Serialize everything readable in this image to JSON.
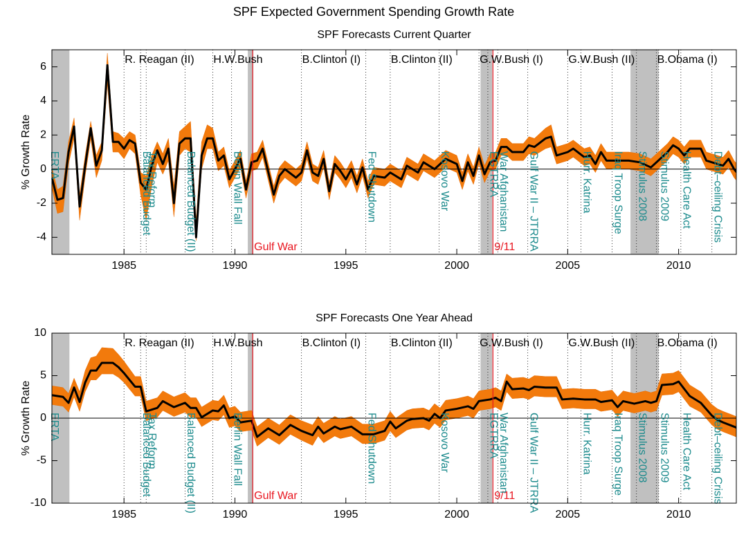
{
  "title": "SPF Expected Government Spending Growth Rate",
  "chart_data": [
    {
      "type": "line",
      "title": "SPF Forecasts Current Quarter",
      "ylabel": "% Growth Rate",
      "xlim": [
        1981.75,
        2012.6
      ],
      "ylim": [
        -5,
        7
      ],
      "xticks": [
        1985,
        1990,
        1995,
        2000,
        2005,
        2010
      ],
      "yticks": [
        -4,
        -2,
        0,
        2,
        4,
        6
      ],
      "x": [
        1981.75,
        1982,
        1982.25,
        1982.5,
        1982.75,
        1983,
        1983.25,
        1983.5,
        1983.75,
        1984,
        1984.25,
        1984.5,
        1984.75,
        1985,
        1985.25,
        1985.5,
        1985.75,
        1986,
        1986.25,
        1986.5,
        1986.75,
        1987,
        1987.25,
        1987.5,
        1987.75,
        1988,
        1988.25,
        1988.5,
        1988.75,
        1989,
        1989.25,
        1989.5,
        1989.75,
        1990,
        1990.25,
        1990.5,
        1990.75,
        1991,
        1991.25,
        1991.75,
        1992,
        1992.25,
        1992.75,
        1993,
        1993.25,
        1993.5,
        1993.75,
        1994,
        1994.25,
        1994.5,
        1994.75,
        1995,
        1995.25,
        1995.5,
        1995.75,
        1996,
        1996.25,
        1996.75,
        1997,
        1997.5,
        1997.75,
        1998.25,
        1998.5,
        1999,
        1999.5,
        2000,
        2000.25,
        2000.5,
        2000.75,
        2001,
        2001.25,
        2001.5,
        2001.75,
        2002,
        2002.25,
        2002.5,
        2003,
        2003.25,
        2003.5,
        2004,
        2004.25,
        2004.5,
        2005,
        2005.25,
        2005.75,
        2006,
        2006.25,
        2006.5,
        2006.75,
        2007.25,
        2007.75,
        2008.25,
        2008.75,
        2009,
        2009.5,
        2009.75,
        2010,
        2010.25,
        2010.5,
        2011,
        2011.25,
        2011.75,
        2012,
        2012.25,
        2012.5,
        2012.75
      ],
      "series": [
        {
          "color": "#000000",
          "values": [
            -0.5,
            -1.8,
            -1.7,
            1.0,
            2.5,
            -2.2,
            0.2,
            2.4,
            0.2,
            1.1,
            6.1,
            1.6,
            1.6,
            1.2,
            1.7,
            1.5,
            -0.8,
            -1.2,
            0.2,
            1.1,
            0.3,
            1.2,
            -2.0,
            1.5,
            1.8,
            1.8,
            -4.0,
            0.8,
            1.8,
            1.8,
            0.5,
            0.8,
            -0.6,
            0.0,
            0.6,
            -1.2,
            0.4,
            0.5,
            1.2,
            -1.5,
            -0.4,
            0.0,
            -0.5,
            -0.2,
            1.1,
            -0.2,
            -0.4,
            0.6,
            -1.3,
            0.3,
            -0.1,
            -0.6,
            0.0,
            -0.9,
            0.1,
            -1.2,
            -0.4,
            -0.5,
            -0.2,
            -0.6,
            0.2,
            -0.2,
            0.4,
            0.0,
            0.6,
            0.3,
            -0.7,
            0.4,
            -0.4,
            0.8,
            -0.3,
            0.4,
            0.5,
            1.3,
            1.3,
            1.0,
            1.0,
            1.4,
            1.3,
            1.8,
            1.9,
            0.8,
            1.0,
            1.2,
            0.7,
            0.8,
            0.3,
            1.0,
            0.5,
            0.5,
            0.5,
            0.4,
            0.1,
            0.4,
            1.0,
            1.4,
            1.2,
            0.8,
            1.2,
            1.2,
            0.5,
            0.3,
            0.2,
            0.6,
            0.0,
            -0.4
          ]
        }
      ],
      "band": {
        "color": "#f27a0c",
        "lower": [
          -1.1,
          -2.6,
          -2.5,
          0.3,
          1.8,
          -3.0,
          -0.4,
          1.8,
          -0.5,
          0.5,
          5.0,
          1.0,
          1.0,
          0.6,
          1.2,
          0.9,
          -1.5,
          -3.0,
          -1.0,
          0.4,
          -0.3,
          0.5,
          -2.8,
          0.8,
          1.2,
          1.0,
          -4.2,
          0.0,
          1.2,
          1.2,
          -0.1,
          0.2,
          -1.1,
          -0.5,
          0.1,
          -1.7,
          -0.1,
          0.0,
          0.7,
          -2.0,
          -0.9,
          -0.5,
          -1.0,
          -0.7,
          0.6,
          -0.7,
          -0.9,
          0.1,
          -1.8,
          -0.2,
          -0.6,
          -1.1,
          -0.5,
          -1.4,
          -0.4,
          -1.7,
          -0.9,
          -1.0,
          -0.7,
          -1.1,
          -0.3,
          -0.7,
          -0.1,
          -0.5,
          0.1,
          -0.2,
          -1.2,
          -0.1,
          -0.9,
          0.3,
          -0.8,
          -0.1,
          0.0,
          0.8,
          0.8,
          0.5,
          0.5,
          0.9,
          0.8,
          1.2,
          1.3,
          0.3,
          0.5,
          0.7,
          0.2,
          0.3,
          -0.2,
          0.5,
          0.0,
          0.0,
          0.0,
          -0.1,
          -0.4,
          -0.1,
          0.5,
          0.9,
          0.7,
          0.3,
          0.7,
          0.7,
          0.0,
          -0.2,
          -0.3,
          0.1,
          -0.5,
          -0.9
        ],
        "upper": [
          0.1,
          -1.2,
          -1.0,
          1.6,
          3.0,
          -1.5,
          0.8,
          2.8,
          0.8,
          1.6,
          6.8,
          2.2,
          2.1,
          1.8,
          2.2,
          2.0,
          -0.2,
          -0.4,
          0.8,
          1.6,
          0.9,
          1.8,
          -1.0,
          2.2,
          2.5,
          2.8,
          -3.0,
          1.6,
          2.6,
          2.4,
          1.0,
          1.3,
          -0.1,
          0.5,
          1.1,
          -0.7,
          0.9,
          1.0,
          1.7,
          -1.0,
          0.1,
          0.5,
          0.0,
          0.3,
          1.6,
          0.3,
          0.1,
          1.1,
          -0.8,
          0.8,
          0.4,
          -0.1,
          0.5,
          -0.4,
          0.6,
          -0.7,
          0.1,
          0.0,
          0.3,
          -0.1,
          0.7,
          0.3,
          0.9,
          0.5,
          1.1,
          0.8,
          -0.2,
          0.9,
          0.1,
          1.3,
          0.2,
          0.9,
          1.0,
          1.8,
          1.8,
          1.5,
          1.5,
          1.9,
          1.8,
          2.4,
          2.6,
          1.3,
          1.5,
          1.7,
          1.2,
          1.3,
          0.8,
          1.5,
          1.0,
          1.0,
          1.0,
          0.9,
          0.6,
          0.9,
          1.5,
          1.9,
          1.7,
          1.3,
          1.7,
          1.7,
          1.0,
          0.8,
          0.7,
          1.1,
          0.5,
          0.1
        ]
      }
    },
    {
      "type": "line",
      "title": "SPF Forecasts One Year Ahead",
      "ylabel": "% Growth Rate",
      "xlim": [
        1981.75,
        2012.6
      ],
      "ylim": [
        -10,
        10
      ],
      "xticks": [
        1985,
        1990,
        1995,
        2000,
        2005,
        2010
      ],
      "yticks": [
        -10,
        -5,
        0,
        5,
        10
      ],
      "x": [
        1981.75,
        1982.25,
        1982.5,
        1982.75,
        1983,
        1983.25,
        1983.5,
        1983.75,
        1984,
        1984.5,
        1984.75,
        1985,
        1985.5,
        1985.75,
        1986,
        1986.5,
        1986.75,
        1987.25,
        1987.75,
        1988,
        1988.25,
        1988.5,
        1989,
        1989.25,
        1989.5,
        1989.75,
        1990,
        1990.25,
        1990.75,
        1991,
        1991.5,
        1992,
        1992.5,
        1993,
        1993.5,
        1993.75,
        1994,
        1994.5,
        1994.75,
        1995.25,
        1995.75,
        1996.25,
        1996.75,
        1997,
        1997.25,
        1997.75,
        1998,
        1998.5,
        1998.75,
        1999,
        1999.25,
        1999.5,
        2000,
        2000.5,
        2000.75,
        2001,
        2001.5,
        2001.75,
        2002,
        2002.25,
        2002.5,
        2003,
        2003.25,
        2003.5,
        2004,
        2004.5,
        2004.75,
        2005.25,
        2005.75,
        2006.25,
        2006.5,
        2007,
        2007.25,
        2007.5,
        2008,
        2008.5,
        2008.75,
        2009,
        2009.25,
        2009.75,
        2010,
        2010.5,
        2011,
        2011.5,
        2011.75,
        2012,
        2012.5,
        2012.75
      ],
      "series": [
        {
          "color": "#000000",
          "values": [
            2.7,
            2.5,
            1.8,
            3.6,
            1.9,
            4.2,
            5.6,
            5.6,
            6.5,
            6.5,
            6.0,
            5.3,
            3.7,
            3.7,
            0.8,
            1.2,
            2.0,
            1.3,
            1.8,
            1.2,
            1.2,
            0.1,
            0.9,
            0.8,
            1.5,
            0.0,
            0.2,
            -0.5,
            -0.3,
            -2.2,
            -1.2,
            -2.0,
            -0.8,
            -1.5,
            -2.0,
            -1.0,
            -1.8,
            -1.0,
            -1.3,
            -1.0,
            -1.9,
            -1.9,
            -1.5,
            -0.4,
            -1.2,
            -0.3,
            -0.1,
            0.0,
            -0.3,
            0.5,
            0.0,
            0.9,
            1.1,
            1.4,
            1.1,
            2.0,
            2.2,
            2.4,
            2.0,
            4.3,
            3.4,
            3.5,
            3.3,
            3.7,
            3.6,
            3.6,
            2.2,
            2.3,
            2.2,
            2.2,
            1.9,
            2.1,
            1.3,
            2.0,
            1.7,
            2.0,
            1.8,
            2.0,
            3.9,
            4.0,
            4.3,
            2.6,
            1.8,
            0.3,
            -0.2,
            -0.5,
            -1.0,
            -1.3
          ]
        }
      ],
      "band": {
        "color": "#f27a0c",
        "lower": [
          1.6,
          1.4,
          0.7,
          2.5,
          0.8,
          3.1,
          4.5,
          4.5,
          5.2,
          5.2,
          4.8,
          4.2,
          2.6,
          2.6,
          -0.3,
          0.1,
          0.9,
          0.2,
          0.7,
          0.1,
          0.1,
          -1.0,
          -0.2,
          -0.3,
          0.4,
          -1.1,
          -0.9,
          -1.6,
          -1.4,
          -3.3,
          -2.3,
          -3.1,
          -1.9,
          -2.6,
          -3.2,
          -2.1,
          -2.9,
          -2.1,
          -2.4,
          -2.1,
          -3.0,
          -3.0,
          -2.6,
          -1.5,
          -2.3,
          -1.4,
          -1.2,
          -1.1,
          -1.4,
          -0.6,
          -1.1,
          -0.2,
          0.0,
          0.3,
          0.0,
          0.9,
          1.1,
          1.3,
          0.9,
          3.1,
          2.3,
          2.4,
          2.2,
          2.6,
          2.5,
          2.5,
          1.1,
          1.2,
          1.1,
          1.1,
          0.8,
          1.0,
          0.2,
          0.9,
          0.6,
          0.9,
          0.7,
          0.9,
          2.7,
          2.8,
          3.1,
          1.4,
          0.7,
          -0.8,
          -1.3,
          -1.6,
          -2.1,
          -2.4
        ],
        "upper": [
          3.8,
          3.6,
          2.9,
          4.7,
          3.1,
          5.6,
          7.1,
          7.3,
          8.3,
          8.2,
          7.5,
          6.7,
          4.9,
          4.9,
          2.0,
          2.4,
          3.2,
          2.5,
          3.0,
          2.4,
          2.4,
          1.3,
          2.1,
          2.0,
          2.7,
          1.2,
          1.4,
          0.7,
          0.9,
          -1.0,
          0.0,
          -0.8,
          0.4,
          -0.3,
          -0.8,
          0.2,
          -0.6,
          0.2,
          -0.1,
          0.2,
          -0.7,
          -0.7,
          -0.3,
          0.8,
          0.0,
          0.9,
          1.1,
          1.2,
          0.9,
          1.7,
          1.2,
          2.1,
          2.3,
          2.6,
          2.3,
          3.2,
          3.4,
          3.6,
          3.2,
          5.2,
          4.7,
          4.8,
          4.6,
          5.0,
          4.9,
          4.9,
          3.4,
          3.5,
          3.4,
          3.4,
          3.1,
          3.3,
          2.5,
          3.2,
          2.9,
          3.2,
          3.0,
          3.2,
          5.2,
          5.3,
          5.6,
          3.9,
          3.1,
          1.6,
          1.1,
          0.8,
          0.3,
          0.0
        ]
      }
    }
  ],
  "recessions": [
    [
      1981.75,
      1982.54
    ],
    [
      1990.58,
      1990.83
    ],
    [
      2001.07,
      2001.6
    ],
    [
      2007.83,
      2009.1
    ]
  ],
  "presidents": [
    {
      "label": "R. Reagan (II)",
      "x": 1985
    },
    {
      "label": "H.W.Bush",
      "x": 1989
    },
    {
      "label": "B.Clinton (I)",
      "x": 1993
    },
    {
      "label": "B.Clinton (II)",
      "x": 1997
    },
    {
      "label": "G.W.Bush (I)",
      "x": 2001
    },
    {
      "label": "G.W.Bush (II)",
      "x": 2005
    },
    {
      "label": "B.Obama (I)",
      "x": 2009
    }
  ],
  "events": [
    {
      "label": "ERTA",
      "x": 1981.6
    },
    {
      "label": "Balanced Budget",
      "x": 1985.75
    },
    {
      "label": "Tax Reform",
      "x": 1986.0
    },
    {
      "label": "Balanced Budget (II)",
      "x": 1987.75
    },
    {
      "label": "Berlin Wall Fall",
      "x": 1989.85
    },
    {
      "label": "Fed Shutdown",
      "x": 1995.9
    },
    {
      "label": "Kosovo War",
      "x": 1999.2
    },
    {
      "label": "EGTRRA",
      "x": 2001.4
    },
    {
      "label": "War Afghanistan",
      "x": 2001.85
    },
    {
      "label": "Gulf War II – JTRRA",
      "x": 2003.2
    },
    {
      "label": "Hurr. Katrina",
      "x": 2005.6
    },
    {
      "label": "Iraq Troop Surge",
      "x": 2007.0
    },
    {
      "label": "Stimulus 2008",
      "x": 2008.1
    },
    {
      "label": "Stimulus 2009",
      "x": 2009.1
    },
    {
      "label": "Health Care Act",
      "x": 2010.1
    },
    {
      "label": "Debt–ceiling Crisis",
      "x": 2011.5
    }
  ],
  "shocks": [
    {
      "label": "Gulf War",
      "x": 1990.8
    },
    {
      "label": "9/11",
      "x": 2001.63
    }
  ]
}
